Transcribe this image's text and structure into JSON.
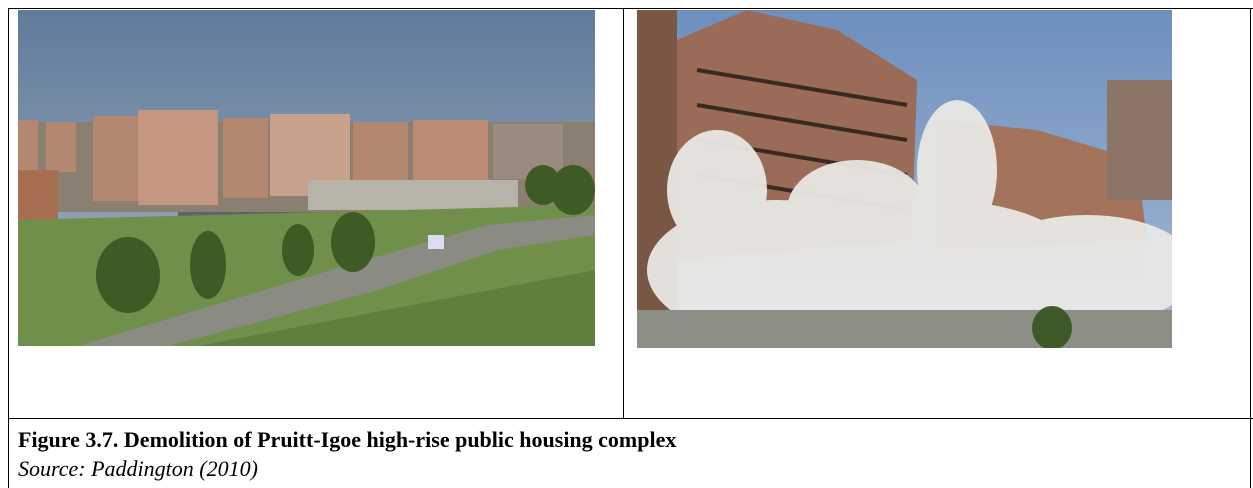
{
  "figure": {
    "caption": "Figure 3.7. Demolition of Pruitt-Igoe high-rise public housing complex",
    "source": "Source: Paddington (2010)"
  }
}
